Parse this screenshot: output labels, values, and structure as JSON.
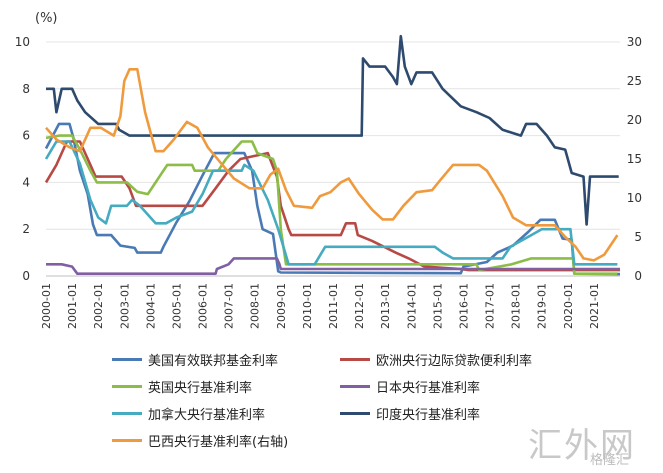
{
  "chart_data": {
    "type": "line",
    "unit_label": "(%)",
    "left_axis": {
      "ylim": [
        0,
        10
      ],
      "ticks": [
        "0",
        "2",
        "4",
        "6",
        "8",
        "10"
      ]
    },
    "right_axis": {
      "ylim": [
        0,
        30
      ],
      "ticks": [
        "0",
        "5",
        "10",
        "15",
        "20",
        "25",
        "30"
      ]
    },
    "x_ticks": [
      "2000-01",
      "2001-01",
      "2002-01",
      "2003-01",
      "2004-01",
      "2005-01",
      "2006-01",
      "2007-01",
      "2008-01",
      "2009-01",
      "2010-01",
      "2011-01",
      "2012-01",
      "2013-01",
      "2014-01",
      "2015-01",
      "2016-01",
      "2017-01",
      "2018-01",
      "2019-01",
      "2020-01",
      "2021-01"
    ],
    "x_range": [
      2000.0,
      2022.0
    ],
    "legend_position": "bottom",
    "grid": "horizontal",
    "series": [
      {
        "name": "美国有效联邦基金利率",
        "color": "#4a7ab5",
        "axis": "left",
        "points": [
          [
            2000.0,
            5.45
          ],
          [
            2000.5,
            6.5
          ],
          [
            2000.9,
            6.5
          ],
          [
            2001.05,
            5.9
          ],
          [
            2001.3,
            4.5
          ],
          [
            2001.6,
            3.5
          ],
          [
            2001.8,
            2.2
          ],
          [
            2001.95,
            1.75
          ],
          [
            2002.5,
            1.75
          ],
          [
            2002.85,
            1.3
          ],
          [
            2003.4,
            1.2
          ],
          [
            2003.5,
            1.0
          ],
          [
            2004.4,
            1.0
          ],
          [
            2004.5,
            1.25
          ],
          [
            2005.0,
            2.3
          ],
          [
            2005.5,
            3.2
          ],
          [
            2006.0,
            4.3
          ],
          [
            2006.45,
            5.25
          ],
          [
            2007.6,
            5.25
          ],
          [
            2007.9,
            4.5
          ],
          [
            2008.1,
            3.0
          ],
          [
            2008.3,
            2.0
          ],
          [
            2008.7,
            1.8
          ],
          [
            2008.9,
            0.2
          ],
          [
            2009.0,
            0.15
          ],
          [
            2015.9,
            0.12
          ],
          [
            2016.0,
            0.4
          ],
          [
            2016.9,
            0.6
          ],
          [
            2017.3,
            1.0
          ],
          [
            2017.9,
            1.3
          ],
          [
            2018.5,
            1.9
          ],
          [
            2018.95,
            2.4
          ],
          [
            2019.5,
            2.4
          ],
          [
            2019.8,
            1.6
          ],
          [
            2020.15,
            1.55
          ],
          [
            2020.25,
            0.1
          ],
          [
            2022.0,
            0.08
          ]
        ]
      },
      {
        "name": "欧洲央行边际贷款便利利率",
        "color": "#b84a46",
        "axis": "left",
        "points": [
          [
            2000.0,
            4.0
          ],
          [
            2000.4,
            4.75
          ],
          [
            2000.8,
            5.75
          ],
          [
            2001.3,
            5.75
          ],
          [
            2001.7,
            4.75
          ],
          [
            2001.9,
            4.25
          ],
          [
            2002.9,
            4.25
          ],
          [
            2003.2,
            3.75
          ],
          [
            2003.45,
            3.0
          ],
          [
            2006.0,
            3.0
          ],
          [
            2006.5,
            3.75
          ],
          [
            2007.0,
            4.5
          ],
          [
            2007.45,
            5.0
          ],
          [
            2008.5,
            5.25
          ],
          [
            2008.85,
            4.25
          ],
          [
            2009.0,
            3.0
          ],
          [
            2009.3,
            2.0
          ],
          [
            2009.4,
            1.75
          ],
          [
            2011.3,
            1.75
          ],
          [
            2011.5,
            2.25
          ],
          [
            2011.85,
            2.25
          ],
          [
            2011.95,
            1.75
          ],
          [
            2012.5,
            1.5
          ],
          [
            2013.4,
            1.0
          ],
          [
            2013.9,
            0.75
          ],
          [
            2014.5,
            0.4
          ],
          [
            2015.9,
            0.3
          ],
          [
            2016.2,
            0.25
          ],
          [
            2022.0,
            0.25
          ]
        ]
      },
      {
        "name": "英国央行基准利率",
        "color": "#8bbd47",
        "axis": "left",
        "points": [
          [
            2000.0,
            5.9
          ],
          [
            2000.5,
            6.0
          ],
          [
            2001.0,
            6.0
          ],
          [
            2001.3,
            5.4
          ],
          [
            2001.7,
            4.5
          ],
          [
            2001.95,
            4.0
          ],
          [
            2003.1,
            4.0
          ],
          [
            2003.5,
            3.6
          ],
          [
            2003.9,
            3.5
          ],
          [
            2004.5,
            4.5
          ],
          [
            2004.65,
            4.75
          ],
          [
            2005.6,
            4.75
          ],
          [
            2005.7,
            4.5
          ],
          [
            2006.6,
            4.5
          ],
          [
            2006.9,
            5.0
          ],
          [
            2007.5,
            5.75
          ],
          [
            2007.9,
            5.75
          ],
          [
            2008.1,
            5.25
          ],
          [
            2008.7,
            5.0
          ],
          [
            2008.85,
            4.5
          ],
          [
            2009.0,
            2.0
          ],
          [
            2009.2,
            0.5
          ],
          [
            2016.5,
            0.5
          ],
          [
            2016.6,
            0.25
          ],
          [
            2017.85,
            0.5
          ],
          [
            2018.6,
            0.75
          ],
          [
            2020.2,
            0.75
          ],
          [
            2020.25,
            0.1
          ],
          [
            2021.9,
            0.1
          ]
        ]
      },
      {
        "name": "日本央行基准利率",
        "color": "#8060a2",
        "axis": "left",
        "points": [
          [
            2000.0,
            0.5
          ],
          [
            2000.6,
            0.5
          ],
          [
            2001.0,
            0.4
          ],
          [
            2001.2,
            0.1
          ],
          [
            2006.5,
            0.1
          ],
          [
            2006.55,
            0.3
          ],
          [
            2007.0,
            0.5
          ],
          [
            2007.2,
            0.75
          ],
          [
            2008.85,
            0.75
          ],
          [
            2008.95,
            0.5
          ],
          [
            2009.0,
            0.3
          ],
          [
            2022.0,
            0.3
          ]
        ]
      },
      {
        "name": "加拿大央行基准利率",
        "color": "#45abc0",
        "axis": "left",
        "points": [
          [
            2000.0,
            5.0
          ],
          [
            2000.4,
            5.75
          ],
          [
            2000.9,
            5.75
          ],
          [
            2001.3,
            4.8
          ],
          [
            2001.7,
            3.25
          ],
          [
            2002.0,
            2.5
          ],
          [
            2002.3,
            2.25
          ],
          [
            2002.5,
            3.0
          ],
          [
            2003.1,
            3.0
          ],
          [
            2003.3,
            3.25
          ],
          [
            2003.6,
            3.0
          ],
          [
            2004.2,
            2.25
          ],
          [
            2004.6,
            2.25
          ],
          [
            2005.0,
            2.5
          ],
          [
            2005.6,
            2.75
          ],
          [
            2006.0,
            3.5
          ],
          [
            2006.4,
            4.5
          ],
          [
            2007.5,
            4.5
          ],
          [
            2007.6,
            4.75
          ],
          [
            2007.95,
            4.5
          ],
          [
            2008.5,
            3.25
          ],
          [
            2008.9,
            2.0
          ],
          [
            2009.3,
            0.5
          ],
          [
            2010.3,
            0.5
          ],
          [
            2010.7,
            1.25
          ],
          [
            2014.9,
            1.25
          ],
          [
            2015.2,
            1.0
          ],
          [
            2015.6,
            0.75
          ],
          [
            2017.5,
            0.75
          ],
          [
            2017.8,
            1.25
          ],
          [
            2018.6,
            1.75
          ],
          [
            2019.0,
            2.0
          ],
          [
            2020.1,
            2.0
          ],
          [
            2020.25,
            0.5
          ],
          [
            2021.9,
            0.5
          ]
        ]
      },
      {
        "name": "印度央行基准利率",
        "color": "#2e4a6e",
        "axis": "left",
        "points": [
          [
            2000.0,
            8.0
          ],
          [
            2000.3,
            8.0
          ],
          [
            2000.4,
            7.0
          ],
          [
            2000.6,
            8.0
          ],
          [
            2001.0,
            8.0
          ],
          [
            2001.2,
            7.5
          ],
          [
            2001.5,
            7.0
          ],
          [
            2002.0,
            6.5
          ],
          [
            2002.7,
            6.5
          ],
          [
            2002.8,
            6.25
          ],
          [
            2003.2,
            6.0
          ],
          [
            2012.1,
            6.0
          ],
          [
            2012.15,
            9.3
          ],
          [
            2012.4,
            8.95
          ],
          [
            2013.0,
            8.95
          ],
          [
            2013.3,
            8.5
          ],
          [
            2013.45,
            8.2
          ],
          [
            2013.6,
            10.25
          ],
          [
            2013.75,
            8.95
          ],
          [
            2014.0,
            8.2
          ],
          [
            2014.2,
            8.7
          ],
          [
            2014.8,
            8.7
          ],
          [
            2015.2,
            8.0
          ],
          [
            2015.9,
            7.25
          ],
          [
            2016.5,
            7.0
          ],
          [
            2017.0,
            6.75
          ],
          [
            2017.5,
            6.25
          ],
          [
            2018.2,
            6.0
          ],
          [
            2018.4,
            6.5
          ],
          [
            2018.8,
            6.5
          ],
          [
            2019.2,
            6.0
          ],
          [
            2019.5,
            5.5
          ],
          [
            2019.9,
            5.4
          ],
          [
            2020.15,
            4.4
          ],
          [
            2020.6,
            4.25
          ],
          [
            2020.72,
            2.2
          ],
          [
            2020.85,
            4.25
          ],
          [
            2021.95,
            4.25
          ]
        ]
      },
      {
        "name": "巴西央行基准利率(右轴)",
        "color": "#f09a3e",
        "axis": "right",
        "points": [
          [
            2000.0,
            19.0
          ],
          [
            2000.4,
            17.5
          ],
          [
            2000.9,
            16.5
          ],
          [
            2001.3,
            16.0
          ],
          [
            2001.7,
            19.0
          ],
          [
            2002.1,
            19.0
          ],
          [
            2002.6,
            18.0
          ],
          [
            2002.85,
            20.5
          ],
          [
            2003.0,
            25.0
          ],
          [
            2003.2,
            26.5
          ],
          [
            2003.5,
            26.5
          ],
          [
            2003.8,
            21.0
          ],
          [
            2004.2,
            16.0
          ],
          [
            2004.5,
            16.0
          ],
          [
            2004.9,
            17.5
          ],
          [
            2005.4,
            19.75
          ],
          [
            2005.8,
            19.0
          ],
          [
            2006.2,
            16.5
          ],
          [
            2006.7,
            14.5
          ],
          [
            2007.2,
            12.5
          ],
          [
            2007.8,
            11.25
          ],
          [
            2008.3,
            11.25
          ],
          [
            2008.6,
            13.0
          ],
          [
            2008.9,
            13.75
          ],
          [
            2009.2,
            11.0
          ],
          [
            2009.5,
            9.0
          ],
          [
            2010.2,
            8.75
          ],
          [
            2010.5,
            10.25
          ],
          [
            2010.9,
            10.75
          ],
          [
            2011.3,
            12.0
          ],
          [
            2011.6,
            12.5
          ],
          [
            2012.0,
            10.5
          ],
          [
            2012.5,
            8.5
          ],
          [
            2012.9,
            7.25
          ],
          [
            2013.3,
            7.25
          ],
          [
            2013.7,
            9.0
          ],
          [
            2014.2,
            10.75
          ],
          [
            2014.8,
            11.0
          ],
          [
            2015.1,
            12.25
          ],
          [
            2015.6,
            14.25
          ],
          [
            2016.6,
            14.25
          ],
          [
            2016.9,
            13.5
          ],
          [
            2017.5,
            10.25
          ],
          [
            2017.9,
            7.5
          ],
          [
            2018.4,
            6.5
          ],
          [
            2019.5,
            6.5
          ],
          [
            2019.9,
            5.0
          ],
          [
            2020.3,
            3.75
          ],
          [
            2020.6,
            2.25
          ],
          [
            2021.0,
            2.0
          ],
          [
            2021.4,
            2.75
          ],
          [
            2021.9,
            5.25
          ]
        ]
      }
    ]
  },
  "watermark": {
    "main": "汇外网",
    "source": "格隆汇"
  }
}
